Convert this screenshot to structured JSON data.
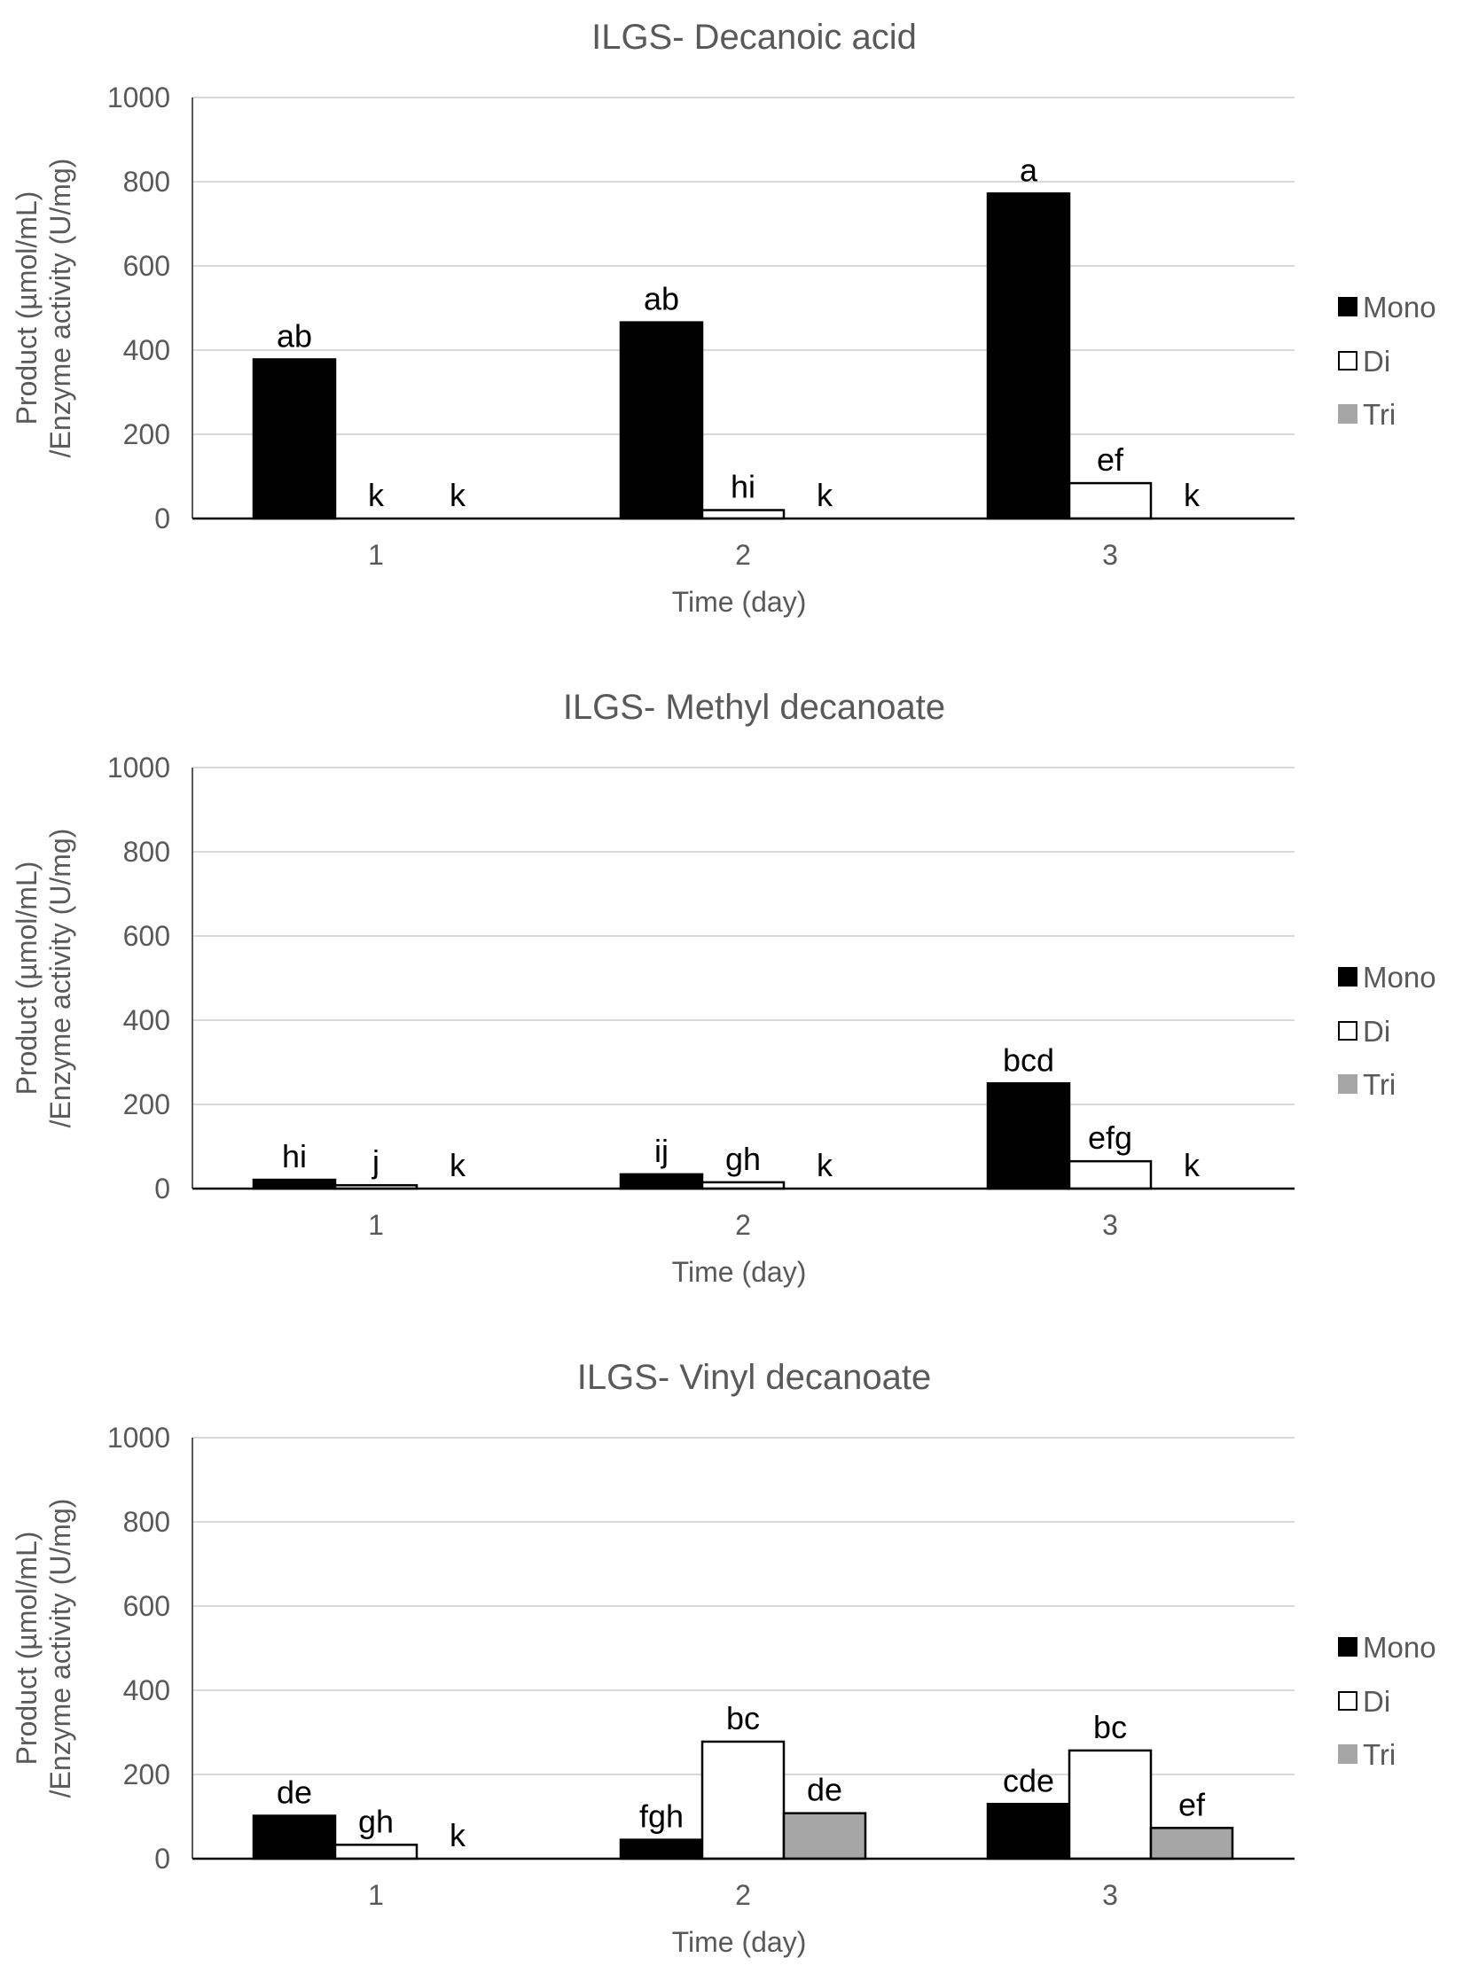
{
  "colors": {
    "mono": "#000000",
    "di": "#ffffff",
    "tri": "#a6a6a6",
    "gridline": "#d9d9d9",
    "axis_text": "#595959"
  },
  "chart_data": [
    {
      "type": "bar",
      "title": "ILGS- Decanoic acid",
      "xlabel": "Time (day)",
      "ylabel": [
        "Product (µmol/mL)",
        "/Enzyme activity (U/mg)"
      ],
      "ylim": [
        0,
        1000
      ],
      "yticks": [
        "0",
        "200",
        "400",
        "600",
        "800",
        "1000"
      ],
      "categories": [
        "1",
        "2",
        "3"
      ],
      "grid": true,
      "legend_position": "right",
      "series": [
        {
          "name": "Mono",
          "color": "#000000",
          "values": [
            378,
            466,
            772
          ],
          "labels": [
            "ab",
            "ab",
            "a"
          ]
        },
        {
          "name": "Di",
          "color": "#ffffff",
          "values": [
            0,
            20,
            84
          ],
          "labels": [
            "k",
            "hi",
            "ef"
          ]
        },
        {
          "name": "Tri",
          "color": "#a6a6a6",
          "values": [
            0,
            0,
            0
          ],
          "labels": [
            "k",
            "k",
            "k"
          ]
        }
      ]
    },
    {
      "type": "bar",
      "title": "ILGS- Methyl decanoate",
      "xlabel": "Time (day)",
      "ylabel": [
        "Product (µmol/mL)",
        "/Enzyme activity (U/mg)"
      ],
      "ylim": [
        0,
        1000
      ],
      "yticks": [
        "0",
        "200",
        "400",
        "600",
        "800",
        "1000"
      ],
      "categories": [
        "1",
        "2",
        "3"
      ],
      "grid": true,
      "legend_position": "right",
      "series": [
        {
          "name": "Mono",
          "color": "#000000",
          "values": [
            21,
            34,
            250
          ],
          "labels": [
            "hi",
            "ij",
            "bcd"
          ]
        },
        {
          "name": "Di",
          "color": "#ffffff",
          "values": [
            8,
            15,
            65
          ],
          "labels": [
            "j",
            "gh",
            "efg"
          ]
        },
        {
          "name": "Tri",
          "color": "#a6a6a6",
          "values": [
            0,
            0,
            0
          ],
          "labels": [
            "k",
            "k",
            "k"
          ]
        }
      ]
    },
    {
      "type": "bar",
      "title": "ILGS- Vinyl decanoate",
      "xlabel": "Time (day)",
      "ylabel": [
        "Product (µmol/mL)",
        "/Enzyme activity (U/mg)"
      ],
      "ylim": [
        0,
        1000
      ],
      "yticks": [
        "0",
        "200",
        "400",
        "600",
        "800",
        "1000"
      ],
      "categories": [
        "1",
        "2",
        "3"
      ],
      "grid": true,
      "legend_position": "right",
      "series": [
        {
          "name": "Mono",
          "color": "#000000",
          "values": [
            102,
            45,
            130
          ],
          "labels": [
            "de",
            "fgh",
            "cde"
          ]
        },
        {
          "name": "Di",
          "color": "#ffffff",
          "values": [
            33,
            278,
            257
          ],
          "labels": [
            "gh",
            "bc",
            "bc"
          ]
        },
        {
          "name": "Tri",
          "color": "#a6a6a6",
          "values": [
            0,
            108,
            73
          ],
          "labels": [
            "k",
            "de",
            "ef"
          ]
        }
      ]
    }
  ]
}
